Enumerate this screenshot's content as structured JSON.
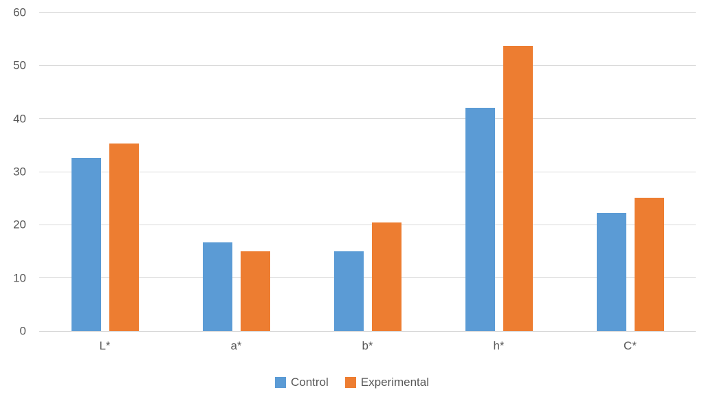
{
  "chart_data": {
    "type": "bar",
    "title": "",
    "categories": [
      "L*",
      "a*",
      "b*",
      "h*",
      "C*"
    ],
    "series": [
      {
        "name": "Control",
        "color": "#5B9BD5",
        "values": [
          32.6,
          16.7,
          15.0,
          42.0,
          22.3
        ]
      },
      {
        "name": "Experimental",
        "color": "#ED7D31",
        "values": [
          35.3,
          15.0,
          20.4,
          53.6,
          25.1
        ]
      }
    ],
    "xlabel": "",
    "ylabel": "",
    "ylim": [
      0,
      60
    ],
    "yticks": [
      0,
      10,
      20,
      30,
      40,
      50,
      60
    ],
    "grid": true,
    "legend_position": "bottom",
    "gridline_color": "#D9D9D9",
    "text_color": "#595959",
    "background_color": "#FFFFFF"
  }
}
